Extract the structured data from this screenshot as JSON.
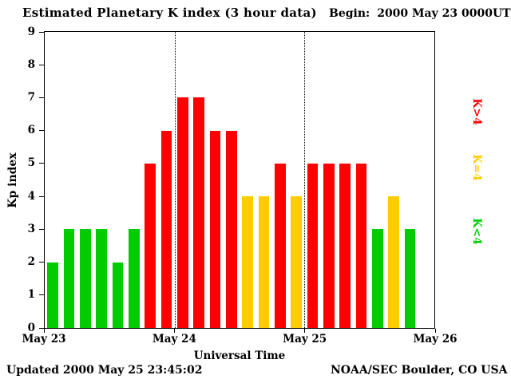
{
  "header": {
    "title": "Estimated Planetary K index (3 hour data)",
    "begin_label": "Begin:",
    "begin_value": "2000 May 23 0000UT"
  },
  "footer": {
    "updated": "Updated 2000 May 25 23:45:02",
    "source": "NOAA/SEC Boulder, CO USA"
  },
  "chart_data": {
    "type": "bar",
    "title": "Estimated Planetary K index (3 hour data)",
    "xlabel": "Universal Time",
    "ylabel": "Kp index",
    "ylim": [
      0,
      9
    ],
    "yticks": [
      0,
      1,
      2,
      3,
      4,
      5,
      6,
      7,
      8,
      9
    ],
    "slots_per_day": 8,
    "slot_hours": 3,
    "x_tick_labels": [
      "May 23",
      "May 24",
      "May 25",
      "May 26"
    ],
    "days": [
      {
        "date": "2000 May 23",
        "values": [
          2,
          3,
          3,
          3,
          2,
          3,
          5,
          6
        ]
      },
      {
        "date": "2000 May 24",
        "values": [
          7,
          7,
          6,
          6,
          4,
          4,
          5,
          4
        ]
      },
      {
        "date": "2000 May 25",
        "values": [
          5,
          5,
          5,
          5,
          3,
          4,
          3,
          null
        ]
      }
    ],
    "color_thresholds": {
      "low": "#00cc00",
      "mid": "#ffcc00",
      "high": "#ff0000"
    },
    "legend": [
      {
        "label": "K>4",
        "color": "#ff0000"
      },
      {
        "label": "K=4",
        "color": "#ffcc00"
      },
      {
        "label": "K<4",
        "color": "#00cc00"
      }
    ],
    "grid": "day-boundary dotted vertical lines only",
    "legend_position": "right-rotated"
  }
}
